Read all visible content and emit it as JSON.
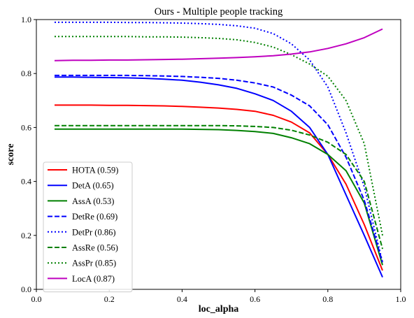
{
  "chart_data": {
    "type": "line",
    "title": "Ours - Multiple people tracking",
    "xlabel": "loc_alpha",
    "ylabel": "score",
    "xlim": [
      0.0,
      1.0
    ],
    "ylim": [
      0.0,
      1.0
    ],
    "xticks": [
      "0.0",
      "0.2",
      "0.4",
      "0.6",
      "0.8",
      "1.0"
    ],
    "yticks": [
      "0.0",
      "0.2",
      "0.4",
      "0.6",
      "0.8",
      "1.0"
    ],
    "grid": false,
    "legend_position": "lower-left",
    "x": [
      0.05,
      0.1,
      0.15,
      0.2,
      0.25,
      0.3,
      0.35,
      0.4,
      0.45,
      0.5,
      0.55,
      0.6,
      0.65,
      0.7,
      0.75,
      0.8,
      0.85,
      0.9,
      0.95
    ],
    "series": [
      {
        "name": "HOTA (0.59)",
        "color": "#ff0000",
        "style": "solid",
        "values": [
          0.683,
          0.683,
          0.683,
          0.682,
          0.682,
          0.681,
          0.68,
          0.678,
          0.675,
          0.672,
          0.667,
          0.66,
          0.645,
          0.62,
          0.58,
          0.5,
          0.39,
          0.24,
          0.07
        ]
      },
      {
        "name": "DetA (0.65)",
        "color": "#0000ff",
        "style": "solid",
        "values": [
          0.787,
          0.787,
          0.786,
          0.785,
          0.784,
          0.782,
          0.779,
          0.775,
          0.768,
          0.758,
          0.745,
          0.725,
          0.7,
          0.66,
          0.6,
          0.5,
          0.35,
          0.2,
          0.045
        ]
      },
      {
        "name": "AssA (0.53)",
        "color": "#008000",
        "style": "solid",
        "values": [
          0.594,
          0.594,
          0.594,
          0.594,
          0.594,
          0.594,
          0.594,
          0.594,
          0.593,
          0.592,
          0.589,
          0.585,
          0.578,
          0.562,
          0.54,
          0.5,
          0.44,
          0.32,
          0.09
        ]
      },
      {
        "name": "DetRe (0.69)",
        "color": "#0000ff",
        "style": "dashed",
        "values": [
          0.793,
          0.793,
          0.793,
          0.793,
          0.793,
          0.792,
          0.791,
          0.789,
          0.786,
          0.782,
          0.775,
          0.765,
          0.75,
          0.72,
          0.68,
          0.61,
          0.49,
          0.33,
          0.1
        ]
      },
      {
        "name": "DetPr (0.86)",
        "color": "#0000ff",
        "style": "dotted",
        "values": [
          0.99,
          0.99,
          0.99,
          0.99,
          0.989,
          0.989,
          0.988,
          0.987,
          0.985,
          0.982,
          0.977,
          0.968,
          0.948,
          0.91,
          0.85,
          0.75,
          0.58,
          0.38,
          0.1
        ]
      },
      {
        "name": "AssRe (0.56)",
        "color": "#008000",
        "style": "dashed",
        "values": [
          0.607,
          0.607,
          0.607,
          0.607,
          0.607,
          0.607,
          0.607,
          0.607,
          0.607,
          0.607,
          0.606,
          0.604,
          0.6,
          0.59,
          0.572,
          0.545,
          0.5,
          0.4,
          0.15
        ]
      },
      {
        "name": "AssPr (0.85)",
        "color": "#008000",
        "style": "dotted",
        "values": [
          0.937,
          0.937,
          0.937,
          0.937,
          0.937,
          0.936,
          0.936,
          0.935,
          0.933,
          0.93,
          0.925,
          0.915,
          0.898,
          0.87,
          0.835,
          0.79,
          0.7,
          0.54,
          0.2
        ]
      },
      {
        "name": "LocA (0.87)",
        "color": "#bf00bf",
        "style": "solid",
        "values": [
          0.848,
          0.849,
          0.849,
          0.85,
          0.85,
          0.851,
          0.852,
          0.853,
          0.855,
          0.857,
          0.859,
          0.862,
          0.866,
          0.872,
          0.88,
          0.893,
          0.91,
          0.933,
          0.965
        ]
      }
    ]
  }
}
